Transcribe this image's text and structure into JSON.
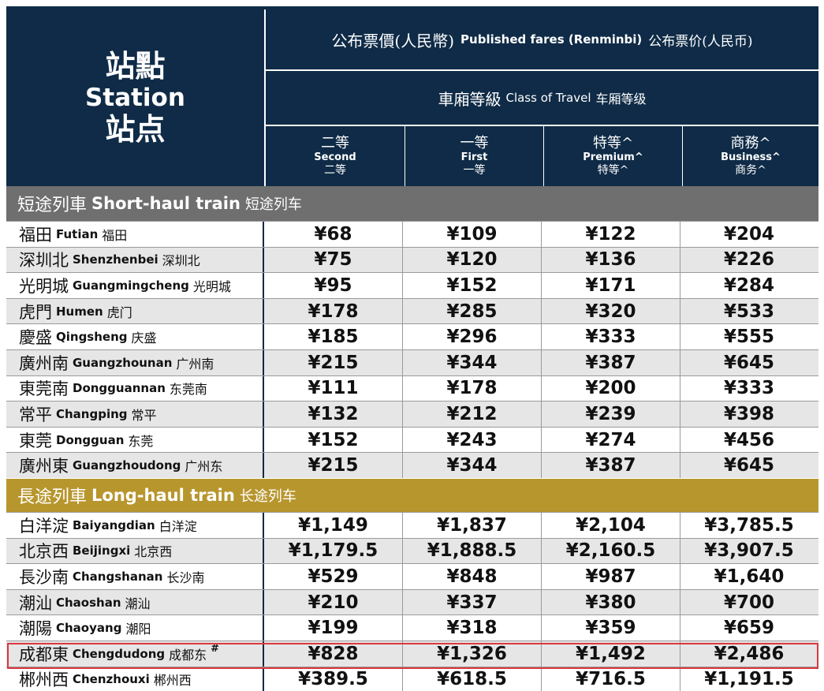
{
  "header": {
    "station": {
      "zh_trad": "站點",
      "en": "Station",
      "zh_simp": "站点"
    },
    "published_fares": {
      "zh_trad": "公布票價(人民幣)",
      "en": "Published fares (Renminbi)",
      "zh_simp": "公布票价(人民币)"
    },
    "class_of_travel": {
      "zh_trad": "車廂等級",
      "en": "Class of Travel",
      "zh_simp": "车厢等级"
    },
    "classes": [
      {
        "zh_trad": "二等",
        "en": "Second",
        "zh_simp": "二等"
      },
      {
        "zh_trad": "一等",
        "en": "First",
        "zh_simp": "一等"
      },
      {
        "zh_trad": "特等^",
        "en": "Premium^",
        "zh_simp": "特等^"
      },
      {
        "zh_trad": "商務^",
        "en": "Business^",
        "zh_simp": "商务^"
      }
    ]
  },
  "sections": {
    "short": {
      "zh_trad": "短途列車",
      "en": "Short-haul train",
      "zh_simp": "短途列车",
      "color": "#6f6f6f"
    },
    "long": {
      "zh_trad": "長途列車",
      "en": "Long-haul train",
      "zh_simp": "长途列车",
      "color": "#b8962e"
    }
  },
  "short_haul": [
    {
      "zh_trad": "福田",
      "en": "Futian",
      "zh_simp": "福田",
      "fares": [
        "¥68",
        "¥109",
        "¥122",
        "¥204"
      ]
    },
    {
      "zh_trad": "深圳北",
      "en": "Shenzhenbei",
      "zh_simp": "深圳北",
      "fares": [
        "¥75",
        "¥120",
        "¥136",
        "¥226"
      ]
    },
    {
      "zh_trad": "光明城",
      "en": "Guangmingcheng",
      "zh_simp": "光明城",
      "fares": [
        "¥95",
        "¥152",
        "¥171",
        "¥284"
      ]
    },
    {
      "zh_trad": "虎門",
      "en": "Humen",
      "zh_simp": "虎门",
      "fares": [
        "¥178",
        "¥285",
        "¥320",
        "¥533"
      ]
    },
    {
      "zh_trad": "慶盛",
      "en": "Qingsheng",
      "zh_simp": "庆盛",
      "fares": [
        "¥185",
        "¥296",
        "¥333",
        "¥555"
      ]
    },
    {
      "zh_trad": "廣州南",
      "en": "Guangzhounan",
      "zh_simp": "广州南",
      "fares": [
        "¥215",
        "¥344",
        "¥387",
        "¥645"
      ]
    },
    {
      "zh_trad": "東莞南",
      "en": "Dongguannan",
      "zh_simp": "东莞南",
      "fares": [
        "¥111",
        "¥178",
        "¥200",
        "¥333"
      ]
    },
    {
      "zh_trad": "常平",
      "en": "Changping",
      "zh_simp": "常平",
      "fares": [
        "¥132",
        "¥212",
        "¥239",
        "¥398"
      ]
    },
    {
      "zh_trad": "東莞",
      "en": "Dongguan",
      "zh_simp": "东莞",
      "fares": [
        "¥152",
        "¥243",
        "¥274",
        "¥456"
      ]
    },
    {
      "zh_trad": "廣州東",
      "en": "Guangzhoudong",
      "zh_simp": "广州东",
      "fares": [
        "¥215",
        "¥344",
        "¥387",
        "¥645"
      ]
    }
  ],
  "long_haul": [
    {
      "zh_trad": "白洋淀",
      "en": "Baiyangdian",
      "zh_simp": "白洋淀",
      "mark": "",
      "fares": [
        "¥1,149",
        "¥1,837",
        "¥2,104",
        "¥3,785.5"
      ]
    },
    {
      "zh_trad": "北京西",
      "en": "Beijingxi",
      "zh_simp": "北京西",
      "mark": "",
      "fares": [
        "¥1,179.5",
        "¥1,888.5",
        "¥2,160.5",
        "¥3,907.5"
      ]
    },
    {
      "zh_trad": "長沙南",
      "en": "Changshanan",
      "zh_simp": "长沙南",
      "mark": "",
      "fares": [
        "¥529",
        "¥848",
        "¥987",
        "¥1,640"
      ]
    },
    {
      "zh_trad": "潮汕",
      "en": "Chaoshan",
      "zh_simp": "潮汕",
      "mark": "",
      "fares": [
        "¥210",
        "¥337",
        "¥380",
        "¥700"
      ]
    },
    {
      "zh_trad": "潮陽",
      "en": "Chaoyang",
      "zh_simp": "潮阳",
      "mark": "",
      "fares": [
        "¥199",
        "¥318",
        "¥359",
        "¥659"
      ]
    },
    {
      "zh_trad": "成都東",
      "en": "Chengdudong",
      "zh_simp": "成都东",
      "mark": "#",
      "fares": [
        "¥828",
        "¥1,326",
        "¥1,492",
        "¥2,486"
      ]
    },
    {
      "zh_trad": "郴州西",
      "en": "Chenzhouxi",
      "zh_simp": "郴州西",
      "mark": "",
      "fares": [
        "¥389.5",
        "¥618.5",
        "¥716.5",
        "¥1,191.5"
      ]
    }
  ],
  "colors": {
    "header_bg": "#0f2b47",
    "alt_row": "#e6e6e6",
    "highlight": "#d9393f"
  }
}
